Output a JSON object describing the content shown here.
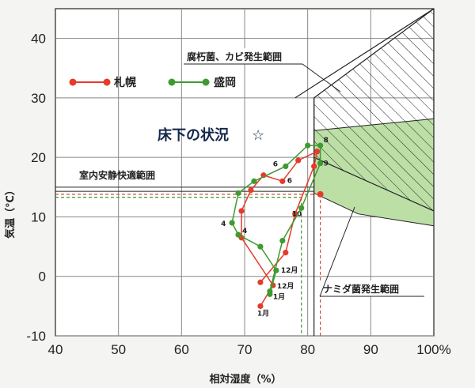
{
  "chart_data": {
    "type": "line",
    "xlabel": "相対湿度（%）",
    "ylabel": "気温（℃）",
    "xlim": [
      40,
      100
    ],
    "ylim": [
      -10,
      45
    ],
    "x_ticks": [
      "40",
      "50",
      "60",
      "70",
      "80",
      "90",
      "100%"
    ],
    "y_ticks": [
      "-10",
      "0",
      "10",
      "20",
      "30",
      "40"
    ],
    "grid": true,
    "legend_position": "top-left",
    "headline": "床下の状況",
    "headline_star": "☆",
    "colors": {
      "sapporo": "#e63a2b",
      "morioka": "#3f9a30",
      "zone_green": "#bcdfa6",
      "grid": "#888888"
    },
    "series": [
      {
        "name": "札幌",
        "color": "#e63a2b",
        "x": [
          72.5,
          74.5,
          69.5,
          69.5,
          71,
          73,
          76,
          78.5,
          81.5,
          81,
          78,
          76.5,
          72.5
        ],
        "y": [
          -5,
          -1.5,
          6.5,
          11,
          14.5,
          17,
          16,
          19.5,
          21,
          18.5,
          10.5,
          4,
          -1
        ],
        "labels": [
          "1月",
          "12月",
          "4",
          "",
          "",
          "",
          "6",
          "",
          "",
          "",
          "10",
          "",
          ""
        ]
      },
      {
        "name": "盛岡",
        "color": "#3f9a30",
        "x": [
          74,
          75,
          72.5,
          69,
          68,
          69,
          71.5,
          76.5,
          80,
          82,
          82,
          79,
          76,
          74
        ],
        "y": [
          -3,
          1,
          5,
          7,
          9,
          14,
          16,
          18.5,
          22,
          22,
          19,
          11.5,
          6,
          -2.5
        ],
        "labels": [
          "1月",
          "12月",
          "",
          "",
          "4",
          "",
          "",
          "6",
          "",
          "8",
          "9",
          "",
          "",
          ""
        ]
      }
    ],
    "annotations": [
      {
        "text": "腐朽菌、カビ発生範囲"
      },
      {
        "text": "室内安静快適範囲"
      },
      {
        "text": "ナミダ菌発生範囲"
      }
    ],
    "reference_lines": [
      {
        "text": "15"
      },
      {
        "text": "82"
      }
    ]
  }
}
